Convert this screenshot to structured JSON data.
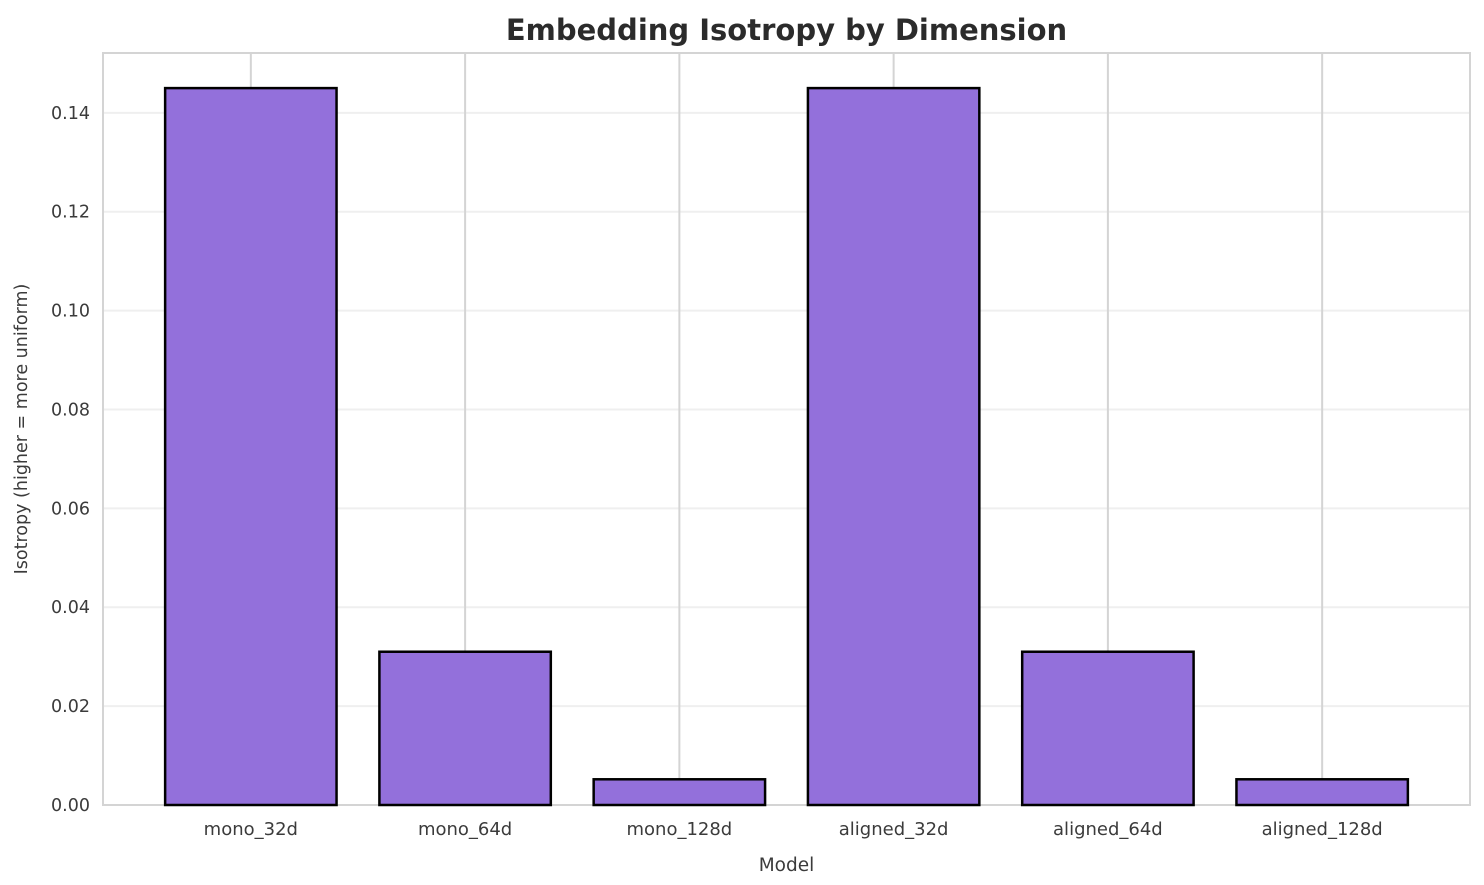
{
  "chart_data": {
    "type": "bar",
    "title": "Embedding Isotropy by Dimension",
    "xlabel": "Model",
    "ylabel": "Isotropy (higher = more uniform)",
    "categories": [
      "mono_32d",
      "mono_64d",
      "mono_128d",
      "aligned_32d",
      "aligned_64d",
      "aligned_128d"
    ],
    "values": [
      0.145,
      0.031,
      0.0052,
      0.145,
      0.031,
      0.0052
    ],
    "ylim": [
      0,
      0.1521
    ],
    "xlim": [
      -0.69,
      5.69
    ],
    "yticks": [
      0,
      0.02,
      0.04,
      0.06,
      0.08,
      0.1,
      0.12,
      0.14
    ],
    "ytick_decimals": 2,
    "bar_width": 0.8,
    "grid": {
      "horizontal": true,
      "vertical": true
    },
    "legend": null,
    "colors": {
      "bar_fill": "#9370DB",
      "bar_edge": "#000000",
      "grid_horizontal": "#efefef",
      "grid_vertical": "#d4d4d4",
      "spine": "#d4d4d4",
      "tick_text": "#3b3b3b",
      "title_text": "#2b2b2b",
      "background": "#ffffff"
    }
  }
}
